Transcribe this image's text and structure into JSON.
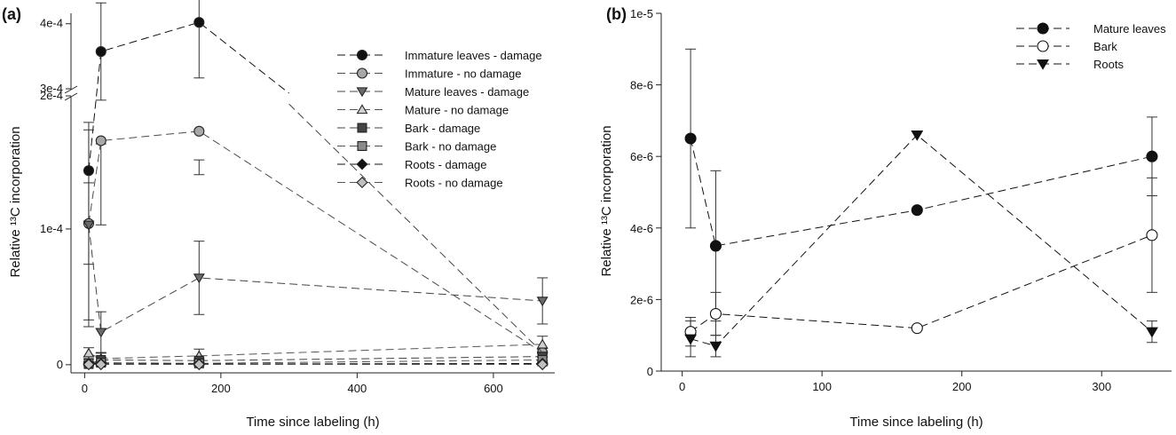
{
  "chart_data": [
    {
      "panel": "(a)",
      "type": "line",
      "xlabel": "Time since labeling (h)",
      "ylabel": "Relative ¹³C incorporation",
      "xlim": [
        -20,
        690
      ],
      "ylim": [
        -6e-06,
        0.000415
      ],
      "axis_break": {
        "lower_top": 0.0002,
        "upper_bottom": 0.0003
      },
      "x_ticks": [
        0,
        200,
        400,
        600
      ],
      "y_ticks": [
        {
          "value": 0,
          "label": "0"
        },
        {
          "value": 0.0001,
          "label": "1e-4"
        },
        {
          "value": 0.0002,
          "label": "2e-4"
        },
        {
          "value": 0.0003,
          "label": "3e-4"
        },
        {
          "value": 0.0004,
          "label": "4e-4"
        }
      ],
      "legend_position": "top-right",
      "series": [
        {
          "name": "Immature leaves - damage",
          "marker": "circle",
          "color": "#111111",
          "line_color": "#111111",
          "x": [
            6,
            24,
            168,
            300
          ],
          "y": [
            0.000143,
            0.00036,
            0.000402,
            0.0003
          ],
          "err": [
            0.000115,
            7e-05,
            8e-05,
            null
          ]
        },
        {
          "name": "Immature - no damage",
          "marker": "circle",
          "color": "#a8a8a8",
          "line_color": "#4d4d4d",
          "x": [
            6,
            24,
            168,
            672
          ],
          "y": [
            0.000104,
            0.000165,
            0.000172,
            9e-06
          ],
          "err": [
            3e-05,
            6.2e-05,
            3.2e-05,
            3e-06
          ]
        },
        {
          "name": "Mature leaves - damage",
          "marker": "triangle-down",
          "color": "#6a6a6a",
          "line_color": "#444444",
          "x": [
            6,
            24,
            168,
            672
          ],
          "y": [
            0.000103,
            2.4e-05,
            6.4e-05,
            4.7e-05
          ],
          "err": [
            7e-05,
            1.5e-05,
            2.7e-05,
            1.7e-05
          ]
        },
        {
          "name": "Mature - no damage",
          "marker": "triangle-up",
          "color": "#cfcfcf",
          "line_color": "#555555",
          "x": [
            6,
            24,
            168,
            672
          ],
          "y": [
            8.5e-06,
            4.5e-06,
            6.5e-06,
            1.5e-05
          ],
          "err": [
            4e-06,
            4e-06,
            5e-06,
            6e-06
          ]
        },
        {
          "name": "Bark - damage",
          "marker": "square",
          "color": "#444444",
          "line_color": "#444444",
          "x": [
            6,
            24,
            168,
            672
          ],
          "y": [
            5e-07,
            3.5e-06,
            3e-06,
            6e-06
          ],
          "err": [
            1e-06,
            2e-06,
            2e-06,
            3e-06
          ]
        },
        {
          "name": "Bark - no damage",
          "marker": "square",
          "color": "#8a8a8a",
          "line_color": "#555555",
          "x": [
            6,
            24,
            168,
            672
          ],
          "y": [
            1e-06,
            1.5e-06,
            1e-06,
            3.5e-06
          ],
          "err": [
            1e-06,
            1e-06,
            1e-06,
            2e-06
          ]
        },
        {
          "name": "Roots - damage",
          "marker": "diamond",
          "color": "#111111",
          "line_color": "#111111",
          "x": [
            6,
            24,
            168,
            672
          ],
          "y": [
            1e-06,
            7e-07,
            5e-07,
            9e-07
          ],
          "err": [
            1e-06,
            1e-06,
            1e-06,
            1e-06
          ]
        },
        {
          "name": "Roots - no damage",
          "marker": "diamond",
          "color": "#c0c0c0",
          "line_color": "#555555",
          "x": [
            6,
            24,
            168,
            672
          ],
          "y": [
            2e-07,
            2e-07,
            2e-07,
            2e-07
          ],
          "err": [
            1e-06,
            1e-06,
            1e-06,
            1e-06
          ]
        }
      ]
    },
    {
      "panel": "(b)",
      "type": "line",
      "xlabel": "Time since labeling (h)",
      "ylabel": "Relative ¹³C incorporation",
      "xlim": [
        -15,
        350
      ],
      "ylim": [
        0,
        1e-05
      ],
      "x_ticks": [
        0,
        100,
        200,
        300
      ],
      "y_ticks": [
        {
          "value": 0,
          "label": "0"
        },
        {
          "value": 2e-06,
          "label": "2e-6"
        },
        {
          "value": 4e-06,
          "label": "4e-6"
        },
        {
          "value": 6e-06,
          "label": "6e-6"
        },
        {
          "value": 8e-06,
          "label": "8e-6"
        },
        {
          "value": 1e-05,
          "label": "1e-5"
        }
      ],
      "legend_position": "top-right",
      "series": [
        {
          "name": "Mature leaves",
          "marker": "circle",
          "color": "#111111",
          "line_color": "#111111",
          "x": [
            6,
            24,
            168,
            336
          ],
          "y": [
            6.5e-06,
            3.5e-06,
            4.5e-06,
            6e-06
          ],
          "err": [
            2.5e-06,
            2.1e-06,
            null,
            1.1e-06
          ]
        },
        {
          "name": "Bark",
          "marker": "circle",
          "color": "#ffffff",
          "line_color": "#111111",
          "x": [
            6,
            24,
            168,
            336
          ],
          "y": [
            1.1e-06,
            1.6e-06,
            1.2e-06,
            3.8e-06
          ],
          "err": [
            4e-07,
            6e-07,
            null,
            1.6e-06
          ]
        },
        {
          "name": "Roots",
          "marker": "triangle-down",
          "color": "#111111",
          "line_color": "#111111",
          "x": [
            6,
            24,
            168,
            336
          ],
          "y": [
            9e-07,
            7e-07,
            6.6e-06,
            1.1e-06
          ],
          "err": [
            5e-07,
            3e-07,
            null,
            3e-07
          ]
        }
      ]
    }
  ]
}
